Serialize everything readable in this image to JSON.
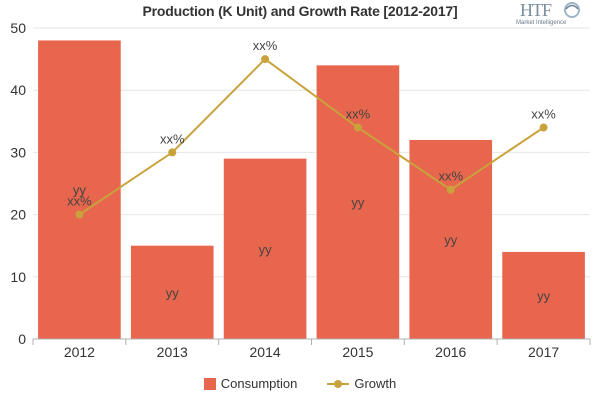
{
  "chart_data": {
    "type": "bar",
    "title": "Production (K Unit) and Growth Rate [2012-2017]",
    "categories": [
      "2012",
      "2013",
      "2014",
      "2015",
      "2016",
      "2017"
    ],
    "ylim": [
      0,
      50
    ],
    "yticks": [
      "0",
      "10",
      "20",
      "30",
      "40",
      "50"
    ],
    "series": [
      {
        "name": "Consumption",
        "type": "bar",
        "color": "#e8664d",
        "values": [
          48,
          15,
          29,
          44,
          32,
          14
        ],
        "labels": [
          "yy",
          "yy",
          "yy",
          "yy",
          "yy",
          "yy"
        ]
      },
      {
        "name": "Growth",
        "type": "line",
        "color": "#c9a23c",
        "values": [
          20,
          30,
          45,
          34,
          24,
          34
        ],
        "labels": [
          "xx%",
          "xx%",
          "xx%",
          "xx%",
          "xx%",
          "xx%"
        ]
      }
    ],
    "grid": true,
    "legend": "bottom-center"
  },
  "logo": {
    "text": "HTF",
    "subtext": "Market Intelligence",
    "color": "#7a8d9c"
  }
}
